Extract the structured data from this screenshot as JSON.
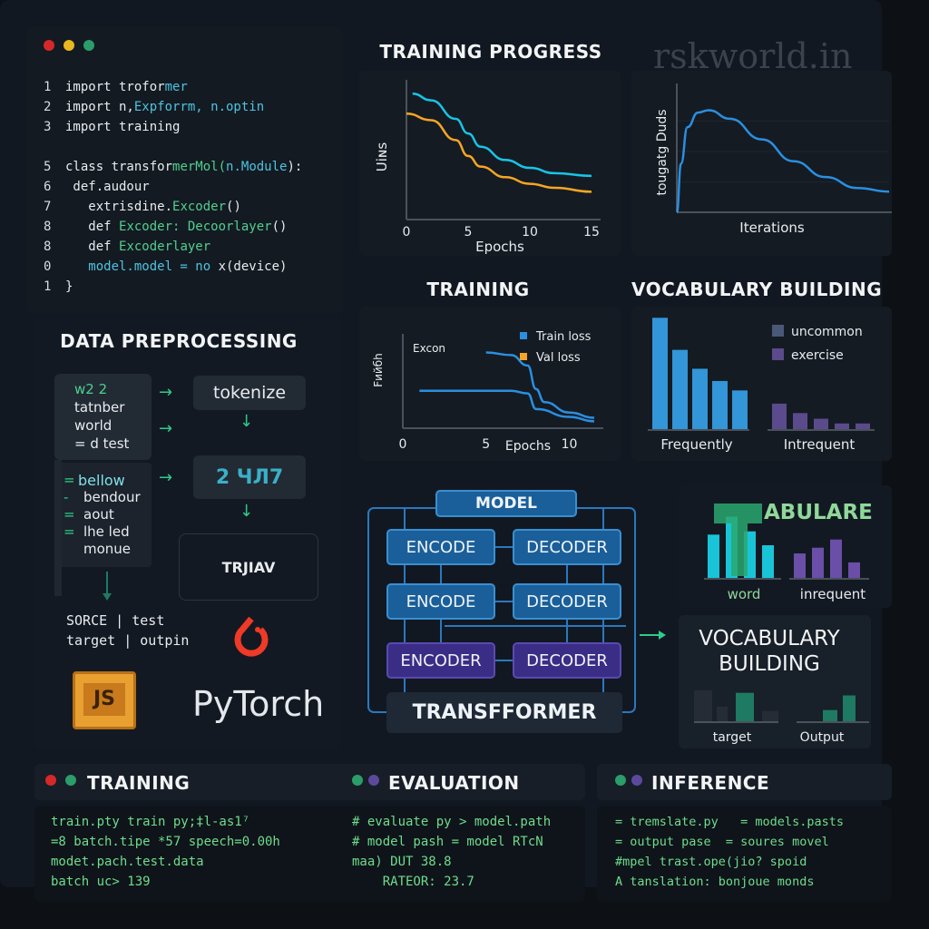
{
  "watermark": "rskworld.in",
  "colors": {
    "accent_green": "#4fd08f",
    "accent_cyan": "#4cc4e0",
    "train": "#19c4e6",
    "val": "#f5a623",
    "bar_blue": "#3296d8",
    "bar_purple": "#5b4a8c",
    "pytorch": "#ee3a26",
    "js": "#e8a030"
  },
  "editor": {
    "window_dots": [
      "red",
      "yellow",
      "green"
    ],
    "lines": [
      {
        "n": "1",
        "tokens": [
          [
            "import trofor",
            "w"
          ],
          [
            "mer",
            "c"
          ]
        ]
      },
      {
        "n": "2",
        "tokens": [
          [
            "import n,",
            "w"
          ],
          [
            "Expforrm, n.optin",
            "c"
          ]
        ]
      },
      {
        "n": "3",
        "tokens": [
          [
            "import training",
            "w"
          ]
        ]
      },
      {
        "n": "",
        "tokens": []
      },
      {
        "n": "5",
        "tokens": [
          [
            "class transfor",
            "w"
          ],
          [
            "merMol(",
            "g"
          ],
          [
            "n.Module",
            "c"
          ],
          [
            "):",
            "w"
          ]
        ]
      },
      {
        "n": "6",
        "tokens": [
          [
            " def.audour",
            "w"
          ]
        ]
      },
      {
        "n": "7",
        "tokens": [
          [
            "   extrisdine.",
            "w"
          ],
          [
            "Excoder",
            "g"
          ],
          [
            "()",
            "w"
          ]
        ]
      },
      {
        "n": "8",
        "tokens": [
          [
            "   def ",
            "w"
          ],
          [
            "Excoder: Decoorlayer",
            "g"
          ],
          [
            "()",
            "w"
          ]
        ]
      },
      {
        "n": "8",
        "tokens": [
          [
            "   def ",
            "w"
          ],
          [
            "Excoderlayer",
            "g"
          ]
        ]
      },
      {
        "n": "0",
        "tokens": [
          [
            "   model.model = no ",
            "c"
          ],
          [
            "x(device)",
            "w"
          ]
        ]
      },
      {
        "n": "1",
        "tokens": [
          [
            "}",
            "w"
          ]
        ]
      }
    ]
  },
  "preprocessing": {
    "title": "DATA PREPROCESSING",
    "source_box": [
      "w2 2",
      "tatnber",
      "world",
      "= d test"
    ],
    "list_box": [
      {
        "mark": "=",
        "text": "bellow"
      },
      {
        "mark": "-",
        "text": "bendour"
      },
      {
        "mark": "=",
        "text": "aout"
      },
      {
        "mark": "=",
        "text": "lhe led"
      },
      {
        "mark": "",
        "text": "monue"
      }
    ],
    "tokenize": "tokenize",
    "encoded": "2 ЧЛ7",
    "transform": "TRJIAV",
    "source_line": "SORCE | test",
    "target_line": "target | outpin",
    "js_label": "JS",
    "pytorch_label": "PyTorch"
  },
  "training_progress": {
    "title": "TRAINING PROGRESS"
  },
  "training": {
    "title": "TRAINING"
  },
  "vocab": {
    "title": "VOCABULARY BUILDING"
  },
  "chart_data": [
    {
      "type": "line",
      "ylabel": "Uiɴs",
      "xlabel": "Epochs",
      "xticks": [
        0,
        5,
        10,
        15
      ],
      "xlim": [
        0,
        15
      ],
      "ylim": [
        0,
        1
      ],
      "grid": false,
      "series": [
        {
          "color": "#19c4e6",
          "x": [
            0.5,
            2,
            4,
            5,
            6,
            8,
            10,
            12,
            15
          ],
          "y": [
            0.95,
            0.9,
            0.76,
            0.65,
            0.55,
            0.45,
            0.39,
            0.35,
            0.33
          ]
        },
        {
          "color": "#f5a623",
          "x": [
            0,
            2,
            4,
            5,
            6,
            8,
            10,
            12,
            15
          ],
          "y": [
            0.8,
            0.75,
            0.6,
            0.48,
            0.4,
            0.32,
            0.27,
            0.24,
            0.21
          ]
        }
      ]
    },
    {
      "type": "line",
      "ylabel": "tougatg Duds",
      "xlabel": "Iterations",
      "xlim": [
        0,
        1
      ],
      "ylim": [
        0,
        1
      ],
      "grid": true,
      "series": [
        {
          "color": "#2a8fe0",
          "x": [
            0,
            0.02,
            0.05,
            0.1,
            0.15,
            0.25,
            0.4,
            0.55,
            0.7,
            0.85,
            1
          ],
          "y": [
            0,
            0.4,
            0.7,
            0.82,
            0.84,
            0.77,
            0.6,
            0.42,
            0.29,
            0.2,
            0.17
          ]
        }
      ]
    },
    {
      "type": "line",
      "ylabel": "Fийбh",
      "xlabel": "Epochs",
      "xticks": [
        0,
        5,
        10
      ],
      "xlim": [
        0,
        11.5
      ],
      "ylim": [
        0,
        1
      ],
      "annotation": "Excon",
      "legend": "top-right",
      "series": [
        {
          "name": "Train loss",
          "color": "#2a8fe0",
          "x": [
            5,
            6.5,
            7.5,
            8,
            8.5,
            10,
            11.5
          ],
          "y": [
            0.87,
            0.84,
            0.72,
            0.45,
            0.3,
            0.18,
            0.12
          ]
        },
        {
          "name": "Val loss",
          "legend_color": "#f5a623",
          "color": "#2a8fe0",
          "x": [
            1,
            6.5,
            7.5,
            8,
            10,
            11.5
          ],
          "y": [
            0.43,
            0.43,
            0.4,
            0.22,
            0.13,
            0.08
          ]
        }
      ]
    },
    {
      "type": "bar",
      "categories": [
        "Frequently",
        "Intrequent"
      ],
      "legend": "top-right",
      "legend_entries": [
        {
          "name": "uncommon",
          "color": "#4a5878"
        },
        {
          "name": "exercise",
          "color": "#5b4a8c"
        }
      ],
      "groups": [
        {
          "label": "Frequently",
          "color": "#3296d8",
          "values": [
            118,
            84,
            64,
            51,
            41
          ]
        },
        {
          "label": "Intrequent",
          "color": "#5b4a8c",
          "values": [
            27,
            17,
            11,
            6,
            6
          ]
        }
      ],
      "ylim": [
        0,
        125
      ]
    },
    {
      "type": "bar",
      "title": "ABULARE",
      "groups": [
        {
          "label": "word",
          "color": "#19c4d8",
          "values": [
            53,
            75,
            57,
            40
          ]
        },
        {
          "label": "inrequent",
          "color": "#6a4ea8",
          "values": [
            30,
            37,
            47,
            19
          ]
        }
      ],
      "ylim": [
        0,
        80
      ]
    },
    {
      "type": "bar",
      "title": "VOCABULARY BUILDING",
      "groups": [
        {
          "label": "target",
          "colors": [
            "#262c35",
            "#262c35",
            "#1e7a62",
            "#262c35"
          ],
          "values": [
            36,
            17,
            33,
            12
          ]
        },
        {
          "label": "Output",
          "colors": [
            "#1e7a62",
            "#1e7a62"
          ],
          "values": [
            13,
            30
          ]
        }
      ],
      "ylim": [
        0,
        40
      ]
    }
  ],
  "model": {
    "title": "MODEL",
    "rows": [
      [
        "ENCODE",
        "DECODER"
      ],
      [
        "ENCODE",
        "DECODER"
      ],
      [
        "ENCODER",
        "DECODER"
      ]
    ],
    "footer": "TRANSFFORMER"
  },
  "bottom": [
    {
      "title": "TRAINING",
      "dots": [
        "#d62828",
        "#2a9d6a"
      ],
      "lines": [
        "train.pty train py;‡l-as1⁷",
        "=8 batch.tipe *57 speech=0.00h",
        "modet.pach.test.data",
        "batch uc> 139"
      ]
    },
    {
      "title": "EVALUATION",
      "dots": [
        "#2a9d6a",
        "#5b4a9c"
      ],
      "lines": [
        "# evaluate py > model.path",
        "# model pash = model RTcN",
        "maa) DUT 38.8",
        "    RATEOR: 23.7"
      ]
    },
    {
      "title": "INFERENCE",
      "dots": [
        "#2a9d6a",
        "#5b4a9c"
      ],
      "lines": [
        "= tremslate.py   = models.pasts",
        "= output pase  = soures movel",
        "#mpel trast.ope(jio? spoid",
        "A tanslation: bonjoue monds"
      ]
    }
  ]
}
